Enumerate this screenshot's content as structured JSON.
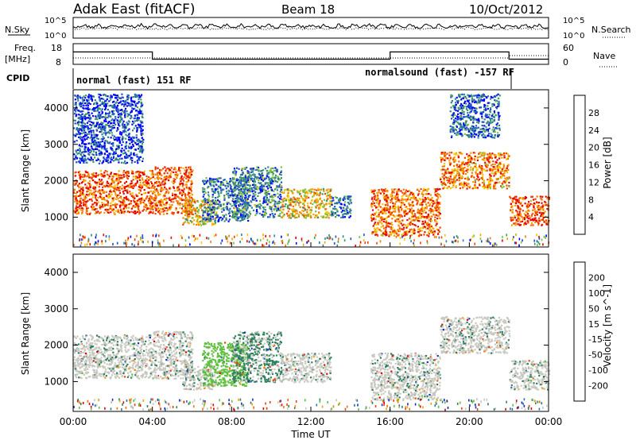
{
  "header": {
    "station": "Adak East (fitACF)",
    "beam": "Beam 18",
    "date": "10/Oct/2012"
  },
  "top_panels": {
    "nsky_label": "N.Sky",
    "nsearch_label": "N.Search",
    "noise_ticks": [
      "10^5",
      "10^0"
    ],
    "freq_label": "Freq.",
    "freq_unit": "[MHz]",
    "freq_ticks": [
      "18",
      "8"
    ],
    "nave_label": "Nave",
    "nave_ticks": [
      "60",
      "0"
    ],
    "cpid_label": "CPID",
    "cpid_segments": [
      {
        "start": 0,
        "end": 16,
        "label": "normal (fast) 151 RF"
      },
      {
        "start": 16,
        "end": 22,
        "label": "normalsound (fast) -157 RF"
      }
    ],
    "freq_steps": [
      {
        "start": 0,
        "end": 4,
        "value": 14
      },
      {
        "start": 4,
        "end": 16,
        "value": 10.5
      },
      {
        "start": 16,
        "end": 22,
        "value": 14
      },
      {
        "start": 22,
        "end": 24,
        "value": 10.5
      }
    ]
  },
  "chart_data": [
    {
      "type": "heatmap",
      "name": "power",
      "xlabel": "Time UT",
      "ylabel": "Slant Range [km]",
      "x_ticks": [
        "00:00",
        "04:00",
        "08:00",
        "12:00",
        "16:00",
        "20:00",
        "00:00"
      ],
      "xlim": [
        0,
        24
      ],
      "ylim": [
        180,
        4500
      ],
      "y_ticks": [
        1000,
        2000,
        3000,
        4000
      ],
      "colorbar": {
        "label": "Power [dB]",
        "ticks": [
          "4",
          "8",
          "12",
          "16",
          "20",
          "24",
          "28"
        ],
        "colors": [
          "#0000ff",
          "#1e50c8",
          "#2f7fa0",
          "#3c9a5a",
          "#7cc23c",
          "#f5c800",
          "#f5a000",
          "#f57800",
          "#f04000",
          "#e60000"
        ]
      },
      "regions": [
        {
          "t0": 0.0,
          "t1": 4.0,
          "r0": 1100,
          "r1": 2300,
          "level": 0.85
        },
        {
          "t0": 4.0,
          "t1": 6.0,
          "r0": 1100,
          "r1": 2400,
          "level": 0.85
        },
        {
          "t0": 5.5,
          "t1": 7.2,
          "r0": 800,
          "r1": 1500,
          "level": 0.6
        },
        {
          "t0": 6.5,
          "t1": 8.8,
          "r0": 900,
          "r1": 2100,
          "level": 0.2
        },
        {
          "t0": 8.0,
          "t1": 10.5,
          "r0": 1000,
          "r1": 2400,
          "level": 0.25
        },
        {
          "t0": 10.5,
          "t1": 13.0,
          "r0": 1000,
          "r1": 1800,
          "level": 0.6
        },
        {
          "t0": 13.0,
          "t1": 14.0,
          "r0": 1000,
          "r1": 1600,
          "level": 0.2
        },
        {
          "t0": 15.0,
          "t1": 18.5,
          "r0": 500,
          "r1": 1800,
          "level": 0.8
        },
        {
          "t0": 18.5,
          "t1": 22.0,
          "r0": 1800,
          "r1": 2800,
          "level": 0.75
        },
        {
          "t0": 22.0,
          "t1": 24.0,
          "r0": 800,
          "r1": 1600,
          "level": 0.9
        },
        {
          "t0": 0.0,
          "t1": 3.5,
          "r0": 2500,
          "r1": 4400,
          "level": 0.1
        },
        {
          "t0": 19.0,
          "t1": 21.5,
          "r0": 3200,
          "r1": 4400,
          "level": 0.15
        }
      ]
    },
    {
      "type": "heatmap",
      "name": "velocity",
      "xlabel": "Time UT",
      "ylabel": "Slant Range [km]",
      "x_ticks": [
        "00:00",
        "04:00",
        "08:00",
        "12:00",
        "16:00",
        "20:00",
        "00:00"
      ],
      "xlim": [
        0,
        24
      ],
      "ylim": [
        180,
        4500
      ],
      "y_ticks": [
        1000,
        2000,
        3000,
        4000
      ],
      "colorbar": {
        "label": "Velocity [m s^-1]",
        "ticks": [
          "200",
          "100",
          "50",
          "15",
          "-15",
          "-50",
          "-100",
          "-200"
        ],
        "colors": [
          "#1030c0",
          "#3070a0",
          "#308060",
          "#60c040",
          "#c8c8c0",
          "#c8c8c0",
          "#f5a000",
          "#f57000",
          "#f04000",
          "#e60000"
        ]
      },
      "regions": [
        {
          "t0": 0.0,
          "t1": 4.0,
          "r0": 1100,
          "r1": 2300,
          "v": 0
        },
        {
          "t0": 4.0,
          "t1": 6.0,
          "r0": 1100,
          "r1": 2400,
          "v": 0
        },
        {
          "t0": 5.5,
          "t1": 7.2,
          "r0": 800,
          "r1": 1500,
          "v": 0
        },
        {
          "t0": 6.5,
          "t1": 8.8,
          "r0": 900,
          "r1": 2100,
          "v": 60
        },
        {
          "t0": 8.0,
          "t1": 10.5,
          "r0": 1000,
          "r1": 2400,
          "v": 20
        },
        {
          "t0": 10.5,
          "t1": 13.0,
          "r0": 1000,
          "r1": 1800,
          "v": 0
        },
        {
          "t0": 15.0,
          "t1": 18.5,
          "r0": 500,
          "r1": 1800,
          "v": 0
        },
        {
          "t0": 18.5,
          "t1": 22.0,
          "r0": 1800,
          "r1": 2800,
          "v": 0
        },
        {
          "t0": 22.0,
          "t1": 24.0,
          "r0": 800,
          "r1": 1600,
          "v": 0
        }
      ]
    }
  ]
}
